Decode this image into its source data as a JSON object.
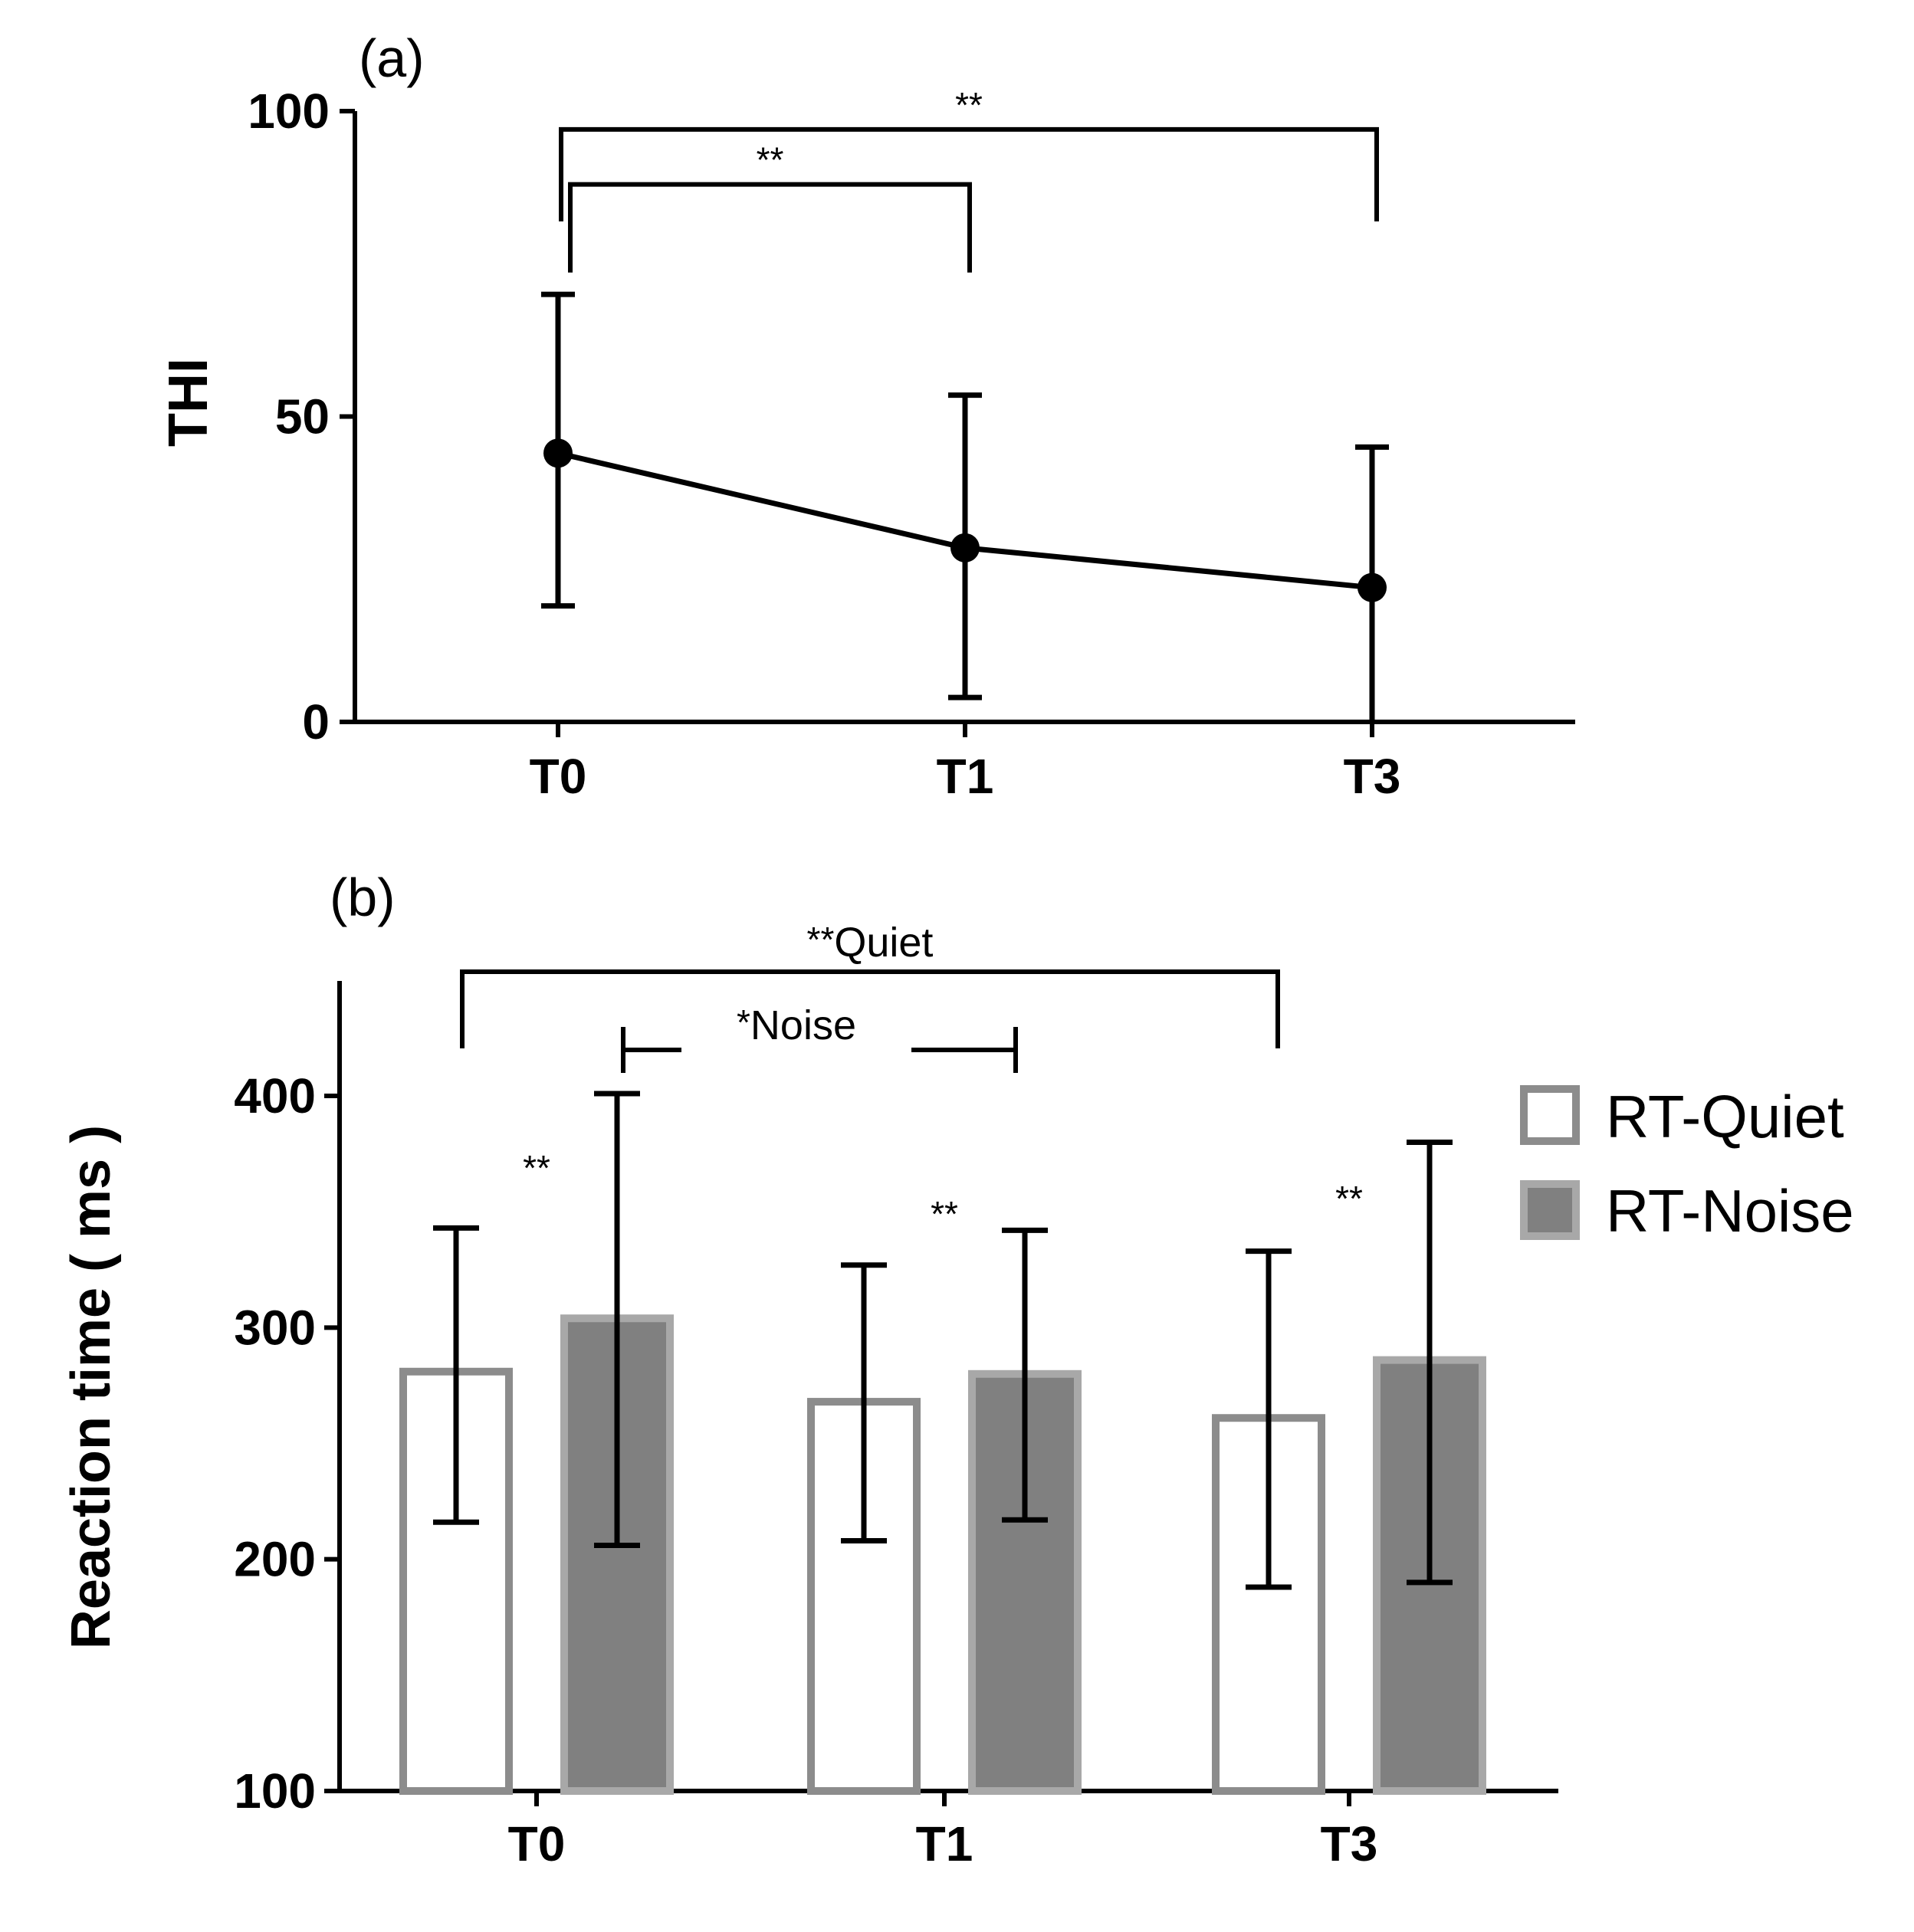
{
  "chart_data": [
    {
      "panel": "(a)",
      "type": "line",
      "ylabel": "THI",
      "xlabel": "",
      "categories": [
        "T0",
        "T1",
        "T3"
      ],
      "ylim": [
        0,
        100
      ],
      "yticks": [
        0,
        50,
        100
      ],
      "series": [
        {
          "name": "THI",
          "values": [
            44,
            28.5,
            22
          ],
          "err_low": [
            19,
            4,
            0
          ],
          "err_high": [
            70,
            53.5,
            45
          ]
        }
      ],
      "significance": [
        {
          "from": "T0",
          "to": "T1",
          "label": "**",
          "level": 88
        },
        {
          "from": "T0",
          "to": "T3",
          "label": "**",
          "level": 97
        }
      ]
    },
    {
      "panel": "(b)",
      "type": "bar",
      "ylabel": "Reaction time ( ms )",
      "xlabel": "",
      "categories": [
        "T0",
        "T1",
        "T3"
      ],
      "ylim": [
        100,
        450
      ],
      "yticks": [
        100,
        200,
        300,
        400
      ],
      "series": [
        {
          "name": "RT-Quiet",
          "values": [
            281,
            268,
            261
          ],
          "err_low": [
            216,
            208,
            188
          ],
          "err_high": [
            343,
            327,
            333
          ],
          "fill": "#ffffff",
          "stroke": "#8c8c8c"
        },
        {
          "name": "RT-Noise",
          "values": [
            304,
            280,
            286
          ],
          "err_low": [
            206,
            217,
            190
          ],
          "err_high": [
            401,
            342,
            380
          ],
          "fill": "#808080",
          "stroke": "#a8a8a8"
        }
      ],
      "pair_significance": [
        {
          "category": "T0",
          "label": "**"
        },
        {
          "category": "T1",
          "label": "**"
        },
        {
          "category": "T3",
          "label": "**"
        }
      ],
      "significance": [
        {
          "from": "T0",
          "to": "T3",
          "group": "Quiet",
          "label": "**",
          "group_label": "Quiet",
          "level": 440
        },
        {
          "from": "T0",
          "to": "T1",
          "group": "Noise",
          "label": "*",
          "group_label": "Noise",
          "level": 414
        }
      ],
      "legend": {
        "position": "right",
        "items": [
          "RT-Quiet",
          "RT-Noise"
        ]
      }
    }
  ]
}
